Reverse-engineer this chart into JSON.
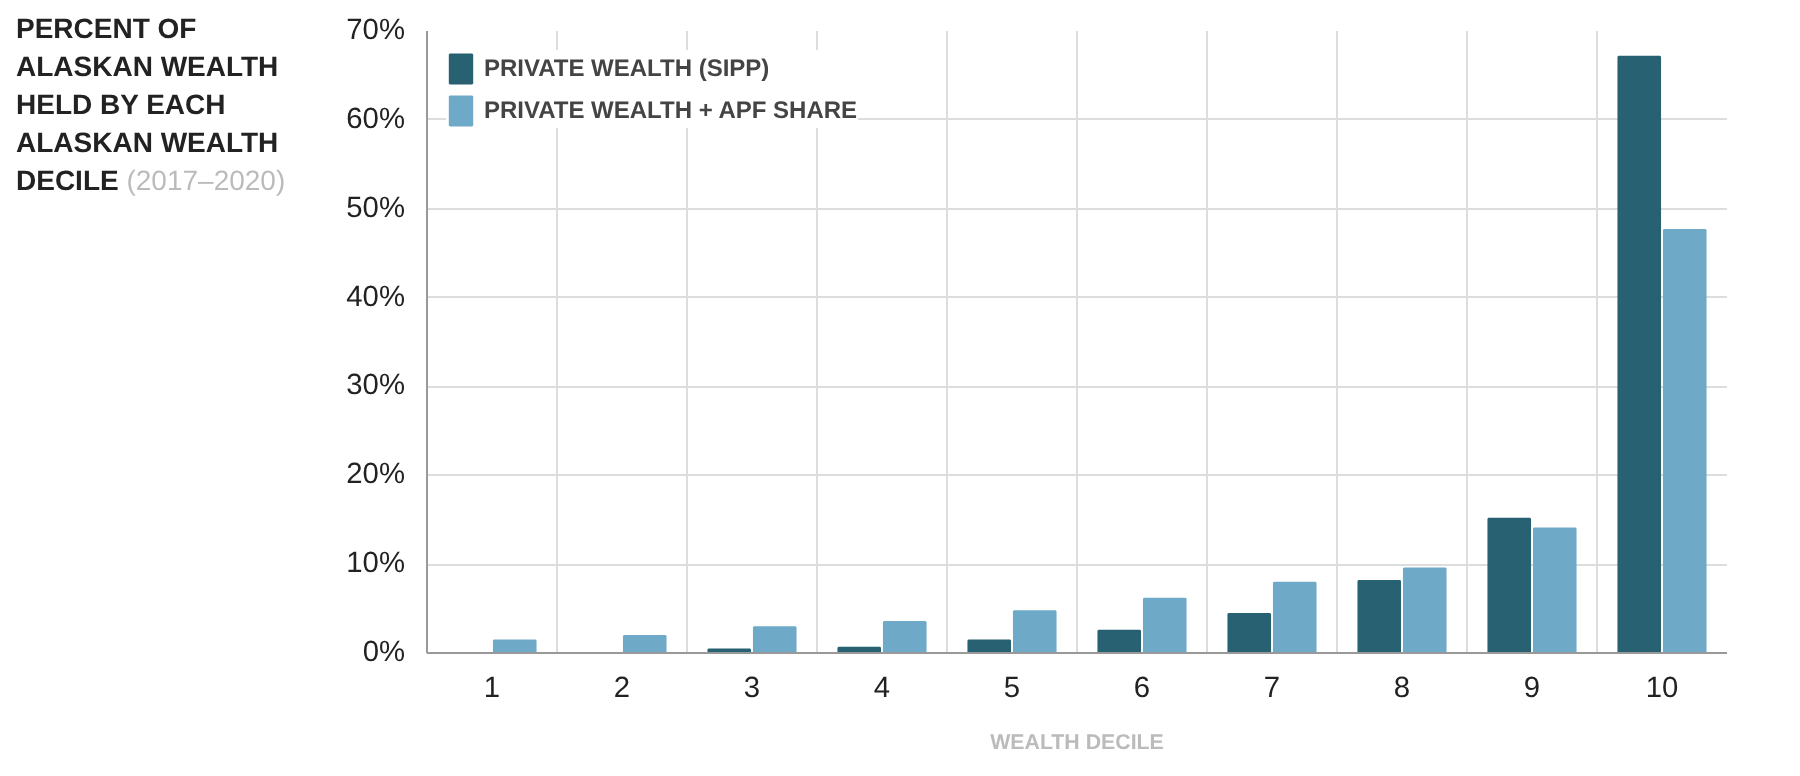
{
  "chart_data": {
    "type": "bar",
    "title": "PERCENT OF ALASKAN WEALTH HELD BY EACH ALASKAN WEALTH DECILE",
    "subtitle": "(2017–2020)",
    "xlabel": "WEALTH DECILE",
    "categories": [
      "1",
      "2",
      "3",
      "4",
      "5",
      "6",
      "7",
      "8",
      "9",
      "10"
    ],
    "series": [
      {
        "name": "PRIVATE WEALTH (SIPP)",
        "color": "#276172",
        "values": [
          0,
          0,
          0.4,
          0.6,
          1.4,
          2.5,
          4.4,
          8.1,
          15.1,
          67.1
        ]
      },
      {
        "name": "PRIVATE WEALTH + APF SHARE",
        "color": "#6eaac8",
        "values": [
          1.4,
          1.9,
          2.9,
          3.5,
          4.7,
          6.1,
          7.9,
          9.5,
          14.0,
          47.6
        ]
      }
    ],
    "ylim": [
      0,
      70
    ],
    "yticks": [
      {
        "value": 0,
        "label": "0%"
      },
      {
        "value": 10,
        "label": "10%"
      },
      {
        "value": 20,
        "label": "20%"
      },
      {
        "value": 30,
        "label": "30%"
      },
      {
        "value": 40,
        "label": "40%"
      },
      {
        "value": 50,
        "label": "50%"
      },
      {
        "value": 60,
        "label": "60%"
      },
      {
        "value": 70,
        "label": "70%"
      }
    ],
    "grid": true,
    "legend": "top left"
  }
}
